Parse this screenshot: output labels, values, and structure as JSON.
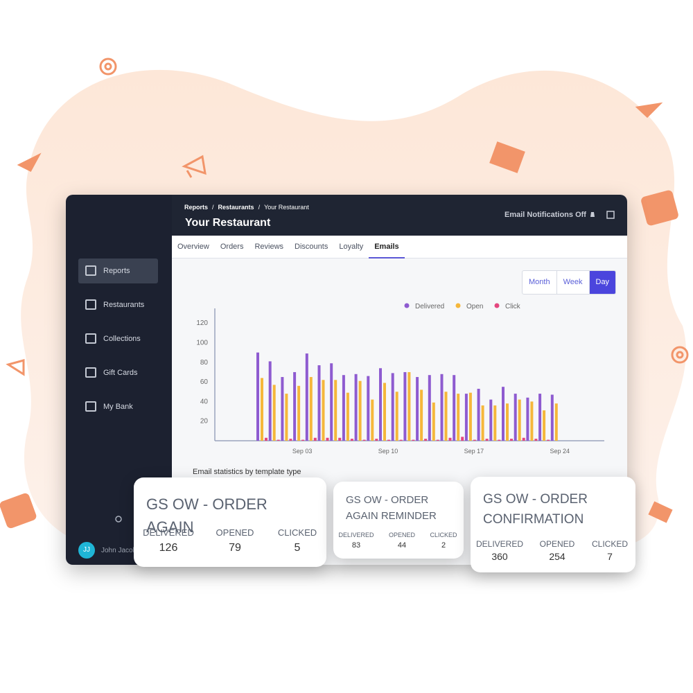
{
  "header": {
    "breadcrumb": [
      "Reports",
      "Restaurants",
      "Your Restaurant"
    ],
    "title": "Your Restaurant",
    "notifications": "Email Notifications Off"
  },
  "sidebar": {
    "items": [
      "Reports",
      "Restaurants",
      "Collections",
      "Gift Cards",
      "My Bank"
    ],
    "active": 0,
    "user": {
      "initials": "JJ",
      "name": "John Jacob"
    }
  },
  "tabs": {
    "items": [
      "Overview",
      "Orders",
      "Reviews",
      "Discounts",
      "Loyalty",
      "Emails"
    ],
    "active": 5
  },
  "range_buttons": {
    "items": [
      "Month",
      "Week",
      "Day"
    ],
    "active": 2
  },
  "chart": {
    "type": "bar",
    "legend": "top",
    "categories": [
      null,
      null,
      null,
      "Sep 03",
      null,
      null,
      null,
      null,
      null,
      null,
      "Sep 10",
      null,
      null,
      null,
      null,
      null,
      null,
      "Sep 17",
      null,
      null,
      null,
      null,
      null,
      null,
      "Sep 24"
    ],
    "series": [
      {
        "name": "Delivered",
        "color": "#8e5bd0",
        "values": [
          90,
          81,
          65,
          70,
          89,
          77,
          79,
          67,
          68,
          66,
          74,
          69,
          70,
          65,
          67,
          68,
          67,
          48,
          53,
          42,
          55,
          48,
          44,
          48,
          47
        ]
      },
      {
        "name": "Open",
        "color": "#f5b73b",
        "values": [
          64,
          57,
          48,
          56,
          65,
          62,
          62,
          49,
          61,
          42,
          59,
          50,
          70,
          52,
          39,
          50,
          48,
          49,
          36,
          36,
          38,
          42,
          40,
          31,
          38
        ]
      },
      {
        "name": "Click",
        "color": "#e4477f",
        "values": [
          3,
          1,
          2,
          1,
          3,
          3,
          3,
          2,
          1,
          2,
          1,
          1,
          1,
          2,
          1,
          3,
          4,
          1,
          2,
          1,
          2,
          3,
          2,
          1,
          0
        ]
      }
    ],
    "ylim": [
      0,
      135
    ],
    "yticks": [
      20,
      40,
      60,
      80,
      100,
      120
    ],
    "grid": false
  },
  "stats_caption": "Email statistics by template type",
  "templates": [
    {
      "title": "GS OW - ORDER AGAIN",
      "metrics": [
        {
          "label": "DELIVERED",
          "value": 126
        },
        {
          "label": "OPENED",
          "value": 79
        },
        {
          "label": "CLICKED",
          "value": 5
        }
      ]
    },
    {
      "title": "GS OW - ORDER AGAIN REMINDER",
      "metrics": [
        {
          "label": "DELIVERED",
          "value": 83
        },
        {
          "label": "OPENED",
          "value": 44
        },
        {
          "label": "CLICKED",
          "value": 2
        }
      ]
    },
    {
      "title": "GS OW - ORDER CONFIRMATION",
      "metrics": [
        {
          "label": "DELIVERED",
          "value": 360
        },
        {
          "label": "OPENED",
          "value": 254
        },
        {
          "label": "CLICKED",
          "value": 7
        }
      ]
    }
  ]
}
